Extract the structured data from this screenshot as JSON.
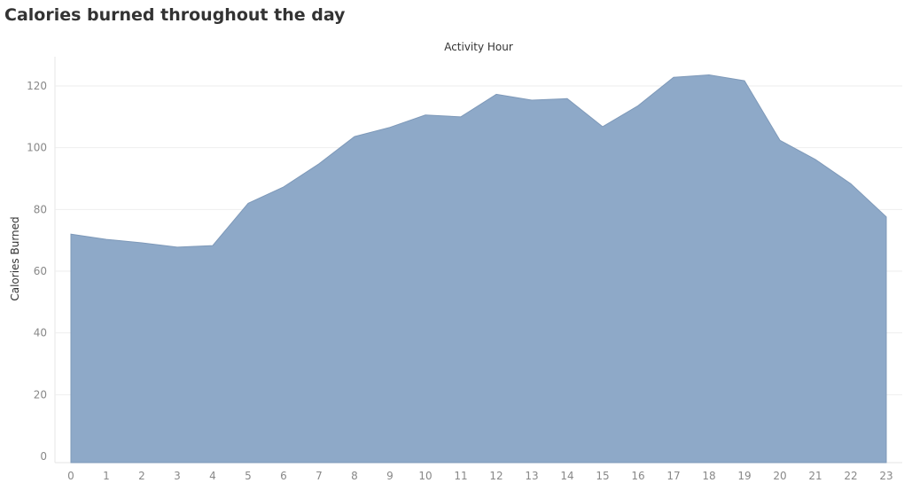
{
  "title": "Calories burned throughout the day",
  "colors": {
    "area_fill": "#8ea9c8",
    "area_stroke": "#7e99b9",
    "grid": "#eeeeee",
    "tick_text": "#888888"
  },
  "chart_data": {
    "type": "area",
    "title": "Calories burned throughout the day",
    "xlabel": "Activity Hour",
    "ylabel": "Calories Burned",
    "x": [
      0,
      1,
      2,
      3,
      4,
      5,
      6,
      7,
      8,
      9,
      10,
      11,
      12,
      13,
      14,
      15,
      16,
      17,
      18,
      19,
      20,
      21,
      22,
      23
    ],
    "values": [
      72,
      70.3,
      69.2,
      67.8,
      68.3,
      82,
      87.3,
      94.8,
      103.6,
      106.6,
      110.6,
      110,
      117.3,
      115.4,
      115.9,
      106.8,
      113.6,
      122.8,
      123.6,
      121.7,
      102.4,
      96.2,
      88.3,
      77.6
    ],
    "yticks": [
      0,
      20,
      40,
      60,
      80,
      100,
      120
    ],
    "ylim": [
      0,
      130
    ],
    "xlim": [
      0,
      23
    ],
    "grid": true,
    "x_axis_position": "top"
  }
}
